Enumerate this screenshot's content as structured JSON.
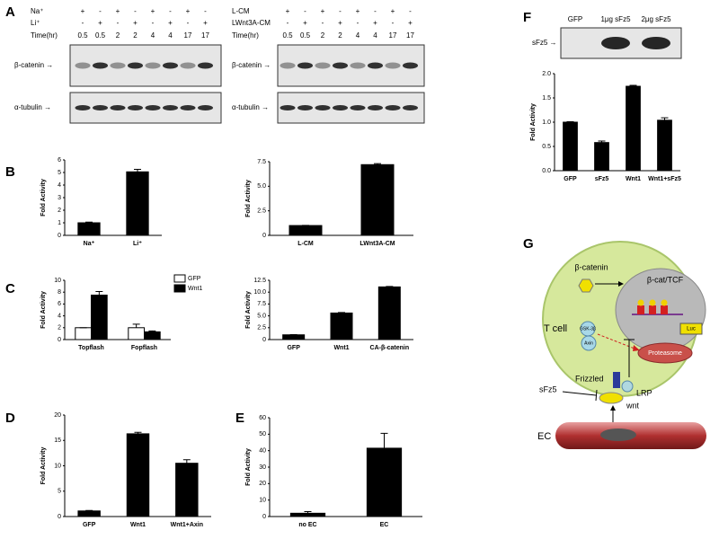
{
  "panel_labels": [
    "A",
    "B",
    "C",
    "D",
    "E",
    "F",
    "G"
  ],
  "blots": [
    {
      "rows": [
        {
          "label": "Na⁺",
          "marks": [
            "+",
            "-",
            "+",
            "-",
            "+",
            "-",
            "+",
            "-"
          ]
        },
        {
          "label": "Li⁺",
          "marks": [
            "-",
            "+",
            "-",
            "+",
            "-",
            "+",
            "-",
            "+"
          ]
        }
      ],
      "time_label": "Time(hr)",
      "times": [
        "0.5",
        "0.5",
        "2",
        "2",
        "4",
        "4",
        "17",
        "17"
      ],
      "bands": [
        "β-catenin →",
        "α-tubulin →"
      ]
    },
    {
      "rows": [
        {
          "label": "L-CM",
          "marks": [
            "+",
            "-",
            "+",
            "-",
            "+",
            "-",
            "+",
            "-"
          ]
        },
        {
          "label": "LWnt3A-CM",
          "marks": [
            "-",
            "+",
            "-",
            "+",
            "-",
            "+",
            "-",
            "+"
          ]
        }
      ],
      "time_label": "Time(hr)",
      "times": [
        "0.5",
        "0.5",
        "2",
        "2",
        "4",
        "4",
        "17",
        "17"
      ],
      "bands": [
        "β-catenin →",
        "α-tubulin →"
      ]
    }
  ],
  "f_blot": {
    "lanes": [
      "GFP",
      "1μg sFz5",
      "2μg sFz5"
    ],
    "band": "sFz5 →"
  },
  "chart_data": [
    {
      "type": "bar",
      "ylabel": "Fold Activity",
      "categories": [
        "Na⁺",
        "Li⁺"
      ],
      "values": [
        1,
        5.05
      ],
      "errors": [
        0.05,
        0.2
      ],
      "color": "#000000",
      "ylim": [
        0,
        6
      ],
      "yticks": [
        0,
        1,
        2,
        3,
        4,
        5,
        6
      ]
    },
    {
      "type": "bar",
      "ylabel": "Fold Activity",
      "categories": [
        "L-CM",
        "LWnt3A-CM"
      ],
      "values": [
        1,
        7.2
      ],
      "errors": [
        0.02,
        0.1
      ],
      "color": "#000000",
      "ylim": [
        0,
        7.5
      ],
      "yticks": [
        0,
        2.5,
        {
          "value": 5,
          "label": "5.0"
        },
        7.5
      ]
    },
    {
      "type": "bar",
      "ylabel": "Fold Activity",
      "categories": [
        "Topflash",
        "Fopflash"
      ],
      "series": [
        {
          "name": "GFP",
          "color": "#ffffff",
          "values": [
            2,
            2
          ],
          "errors": [
            0,
            0.6
          ]
        },
        {
          "name": "Wnt1",
          "color": "#000000",
          "values": [
            7.5,
            1.3
          ],
          "errors": [
            0.6,
            0.15
          ]
        }
      ],
      "legend": "upper right",
      "ylim": [
        0,
        10
      ],
      "yticks": [
        0,
        2,
        4,
        6,
        8,
        10
      ]
    },
    {
      "type": "bar",
      "ylabel": "Fold Activity",
      "categories": [
        "GFP",
        "Wnt1",
        "CA-β-catenin"
      ],
      "values": [
        1,
        5.6,
        11.1
      ],
      "errors": [
        0.05,
        0.1,
        0.1
      ],
      "color": "#000000",
      "ylim": [
        0,
        12.5
      ],
      "yticks": [
        0,
        2.5,
        {
          "value": 5,
          "label": "5.0"
        },
        7.5,
        {
          "value": 10,
          "label": "10.0"
        },
        12.5
      ]
    },
    {
      "type": "bar",
      "ylabel": "Fold Activity",
      "categories": [
        "GFP",
        "Wnt1",
        "Wnt1+Axin"
      ],
      "values": [
        1.1,
        16.3,
        10.5
      ],
      "errors": [
        0.1,
        0.3,
        0.7
      ],
      "color": "#000000",
      "ylim": [
        0,
        20
      ],
      "yticks": [
        0,
        5,
        10,
        15,
        20
      ]
    },
    {
      "type": "bar",
      "ylabel": "Fold Activity",
      "categories": [
        "no EC",
        "EC"
      ],
      "values": [
        2,
        41.5
      ],
      "errors": [
        1,
        9
      ],
      "color": "#000000",
      "ylim": [
        0,
        60
      ],
      "yticks": [
        0,
        10,
        20,
        30,
        40,
        50,
        60
      ]
    },
    {
      "type": "bar",
      "ylabel": "Fold Activity",
      "categories": [
        "GFP",
        "sFz5",
        "Wnt1",
        "Wnt1+sFz5"
      ],
      "values": [
        1,
        0.58,
        1.74,
        1.04
      ],
      "errors": [
        0.01,
        0.03,
        0.02,
        0.05
      ],
      "color": "#000000",
      "ylim": [
        0,
        2
      ],
      "yticks": [
        {
          "value": 0,
          "label": "0.0"
        },
        0.5,
        {
          "value": 1,
          "label": "1.0"
        },
        1.5,
        {
          "value": 2,
          "label": "2.0"
        }
      ]
    }
  ],
  "diagram": {
    "t_cell": "T cell",
    "beta_catenin": "β-catenin",
    "nucleus": "β-cat/TCF",
    "luc": "Luc",
    "gsk": "GSK-3β",
    "axin": "Axin",
    "proteasome": "Proteasome",
    "frizzled": "Frizzled",
    "lrp": "LRP",
    "sfz5": "sFz5",
    "wnt": "wnt",
    "ec": "EC"
  }
}
